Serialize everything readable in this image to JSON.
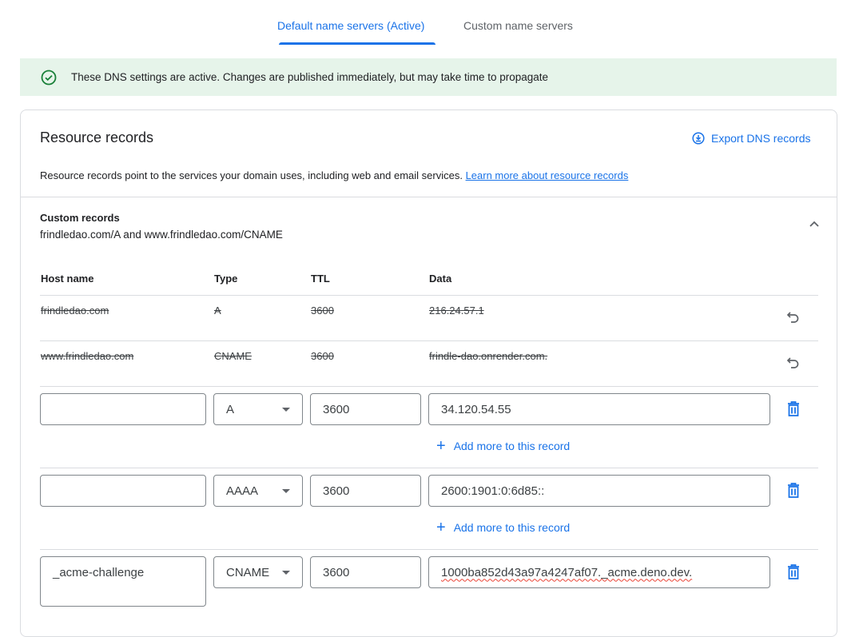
{
  "tabs": [
    {
      "label": "Default name servers (Active)",
      "active": true
    },
    {
      "label": "Custom name servers",
      "active": false
    }
  ],
  "banner": {
    "text": "These DNS settings are active. Changes are published immediately, but may take time to propagate",
    "icon": "check-circle-icon",
    "color": "#e6f4ea"
  },
  "resource": {
    "title": "Resource records",
    "export_label": "Export DNS records",
    "description": "Resource records point to the services your domain uses, including web and email services.",
    "learn_more": "Learn more about resource records"
  },
  "custom": {
    "title": "Custom records",
    "subtitle": "frindledao.com/A and www.frindledao.com/CNAME"
  },
  "columns": [
    "Host name",
    "Type",
    "TTL",
    "Data"
  ],
  "deleted_rows": [
    {
      "host": "frindledao.com",
      "type": "A",
      "ttl": "3600",
      "data": "216.24.57.1"
    },
    {
      "host": "www.frindledao.com",
      "type": "CNAME",
      "ttl": "3600",
      "data": "frindle-dao.onrender.com."
    }
  ],
  "edit_rows": [
    {
      "host": "",
      "type": "A",
      "ttl": "3600",
      "data": "34.120.54.55",
      "add_more": "Add more to this record"
    },
    {
      "host": "",
      "type": "AAAA",
      "ttl": "3600",
      "data": "2600:1901:0:6d85::",
      "add_more": "Add more to this record"
    },
    {
      "host": "_acme-challenge",
      "type": "CNAME",
      "ttl": "3600",
      "data": "1000ba852d43a97a4247af07._acme.deno.dev."
    }
  ],
  "accent": "#1a73e8"
}
